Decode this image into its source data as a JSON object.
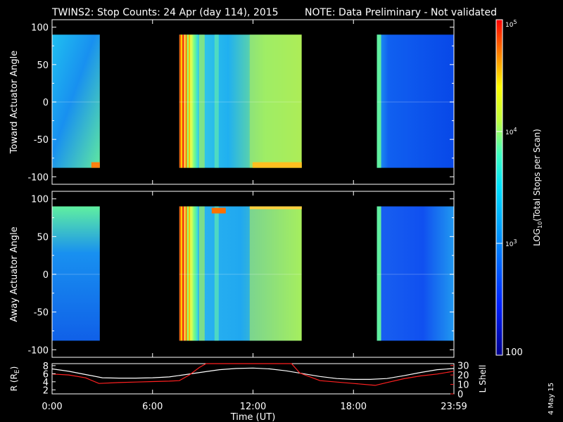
{
  "title": {
    "main": "TWINS2: Stop Counts: 24 Apr (day 114), 2015",
    "note": "NOTE: Data Preliminary - Not validated",
    "note_color": "#ff2020"
  },
  "date_stamp": "4 May 15",
  "chart_data": [
    {
      "type": "heatmap",
      "name": "toward",
      "ylabel": "Toward Actuator Angle",
      "ylim": [
        -110,
        110
      ],
      "yticks": [
        "100",
        "50",
        "0",
        "-50",
        "-100"
      ],
      "angle_range": [
        -88,
        90
      ],
      "data_blocks_hours": [
        [
          0,
          2.85
        ],
        [
          7.6,
          14.9
        ],
        [
          19.4,
          24
        ]
      ]
    },
    {
      "type": "heatmap",
      "name": "away",
      "ylabel": "Away Actuator Angle",
      "ylim": [
        -110,
        110
      ],
      "yticks": [
        "100",
        "50",
        "0",
        "-50",
        "-100"
      ],
      "angle_range": [
        -88,
        90
      ],
      "data_blocks_hours": [
        [
          0,
          2.85
        ],
        [
          7.6,
          14.9
        ],
        [
          19.4,
          24
        ]
      ]
    },
    {
      "type": "line",
      "name": "orbit",
      "ylabel_left": "R (R",
      "ylabel_left_sub": "E",
      "ylabel_left_end": ")",
      "ylabel_right": "L Shell",
      "yticks_left": [
        "8",
        "6",
        "4",
        "2"
      ],
      "yticks_right": [
        "30",
        "20",
        "10",
        "0"
      ],
      "xlim": [
        0,
        24
      ],
      "xlabel": "Time (UT)",
      "xticks": [
        "0:00",
        "6:00",
        "12:00",
        "18:00",
        "23:59"
      ],
      "r_series": {
        "x": [
          0,
          1,
          2,
          3,
          4,
          5,
          6,
          7,
          8,
          9,
          10,
          11,
          12,
          13,
          14,
          15,
          16,
          17,
          18,
          19,
          20,
          21,
          22,
          23,
          24
        ],
        "values": [
          7.2,
          6.6,
          5.8,
          5.0,
          4.9,
          4.9,
          5.0,
          5.2,
          5.8,
          6.4,
          7.0,
          7.3,
          7.4,
          7.2,
          6.7,
          6.0,
          5.3,
          4.8,
          4.6,
          4.6,
          4.8,
          5.5,
          6.3,
          7.0,
          7.3
        ]
      },
      "l_series": {
        "x": [
          0,
          1,
          2,
          2.8,
          4,
          5,
          6,
          7,
          7.6,
          8.2,
          8.8,
          9.2,
          14.3,
          14.8,
          16,
          17,
          18,
          19.3,
          20,
          21,
          22,
          23,
          24
        ],
        "values": [
          21,
          20,
          17,
          11,
          12,
          12.5,
          13,
          13.5,
          14,
          20,
          28,
          32,
          32,
          22,
          14,
          12.5,
          11,
          9,
          12,
          16,
          19,
          21,
          24
        ]
      },
      "r_color": "#ffffff",
      "l_color": "#ff2020"
    }
  ],
  "colorbar": {
    "label": "LOG",
    "label_sub": "10",
    "label_end": "(Total Stops per Scan)",
    "ticks": [
      {
        "base": "10",
        "exp": "5"
      },
      {
        "base": "10",
        "exp": "4"
      },
      {
        "base": "10",
        "exp": "3"
      },
      {
        "value": "100"
      }
    ]
  }
}
